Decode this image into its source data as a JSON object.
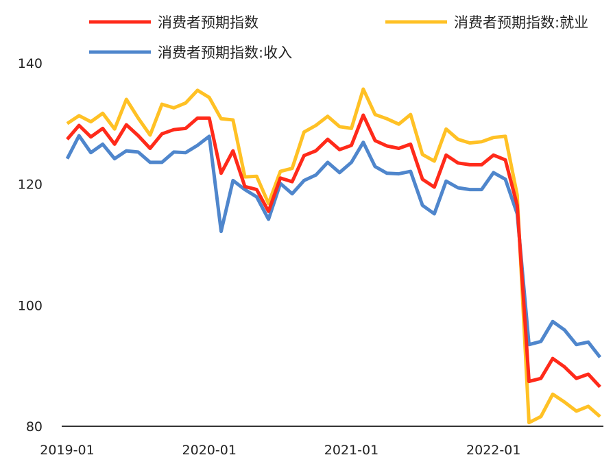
{
  "chart_data": {
    "type": "line",
    "title": "",
    "xlabel": "",
    "ylabel": "",
    "ylim": [
      80,
      140
    ],
    "yticks": [
      80,
      100,
      120,
      140
    ],
    "xtick_labels": [
      "2019-01",
      "2020-01",
      "2021-01",
      "2022-01"
    ],
    "x_start": "2019-01",
    "x_end": "2022-10",
    "grid": false,
    "legend_position": "top",
    "series": [
      {
        "name": "消费者预期指数",
        "color": "#ff2a1a",
        "values": [
          127.4,
          129.7,
          127.8,
          129.2,
          126.6,
          129.8,
          128.0,
          125.9,
          128.3,
          129.0,
          129.2,
          130.9,
          130.9,
          121.8,
          125.5,
          119.6,
          119.1,
          115.5,
          121.0,
          120.4,
          124.7,
          125.5,
          127.4,
          125.7,
          126.4,
          131.4,
          127.2,
          126.3,
          125.9,
          126.6,
          120.8,
          119.5,
          124.8,
          123.5,
          123.2,
          123.2,
          124.8,
          124.0,
          116.5,
          87.4,
          87.9,
          91.2,
          89.8,
          87.9,
          88.6,
          86.5
        ]
      },
      {
        "name": "消费者预期指数:就业",
        "color": "#ffc125",
        "values": [
          130.0,
          131.3,
          130.3,
          131.7,
          129.1,
          134.0,
          130.9,
          128.1,
          133.2,
          132.6,
          133.4,
          135.5,
          134.3,
          130.8,
          130.6,
          121.2,
          121.3,
          116.8,
          122.1,
          122.6,
          128.6,
          129.7,
          131.2,
          129.5,
          129.2,
          135.7,
          131.5,
          130.8,
          129.9,
          131.5,
          124.9,
          123.8,
          129.1,
          127.4,
          126.8,
          127.0,
          127.7,
          127.9,
          118.2,
          80.6,
          81.6,
          85.3,
          84.0,
          82.5,
          83.3,
          81.6
        ]
      },
      {
        "name": "消费者预期指数:收入",
        "color": "#4f86cc",
        "values": [
          124.2,
          128.0,
          125.2,
          126.6,
          124.2,
          125.5,
          125.3,
          123.6,
          123.6,
          125.3,
          125.2,
          126.4,
          127.9,
          112.2,
          120.6,
          119.1,
          117.9,
          114.2,
          120.1,
          118.4,
          120.6,
          121.5,
          123.6,
          121.9,
          123.6,
          126.9,
          122.9,
          121.8,
          121.7,
          122.1,
          116.5,
          115.1,
          120.5,
          119.4,
          119.1,
          119.1,
          121.9,
          120.8,
          115.1,
          93.5,
          94.0,
          97.3,
          95.9,
          93.5,
          93.9,
          91.4
        ]
      }
    ]
  }
}
